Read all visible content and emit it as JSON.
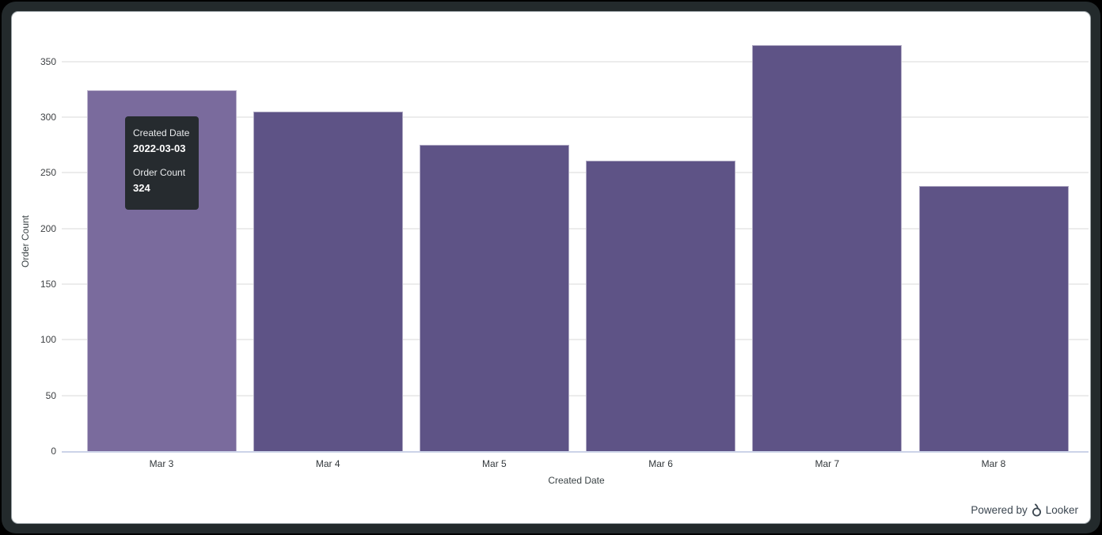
{
  "colors": {
    "page_bg": "#000000",
    "frame": "#232a2c",
    "card_bg": "#ffffff",
    "grid": "#ececec",
    "axis_line": "#ccd3e8"
  },
  "chart_data": {
    "type": "bar",
    "title": "",
    "categories": [
      "Mar 3",
      "Mar 4",
      "Mar 5",
      "Mar 6",
      "Mar 7",
      "Mar 8"
    ],
    "values": [
      324,
      305,
      275,
      261,
      365,
      238
    ],
    "xlabel": "Created Date",
    "ylabel": "Order Count",
    "ylim": [
      0,
      350
    ],
    "yticks": [
      0,
      50,
      100,
      150,
      200,
      250,
      300,
      350
    ],
    "grid": "horizontal-only",
    "legend": "none",
    "bar_color": "#5e5386",
    "bar_hover_color": "#7a6b9d",
    "hovered_index": 0
  },
  "tooltip": {
    "bg": "#262b2f",
    "dimension_label": "Created Date",
    "dimension_value": "2022-03-03",
    "measure_label": "Order Count",
    "measure_value": "324"
  },
  "footer": {
    "powered_by": "Powered by",
    "brand": "Looker"
  }
}
